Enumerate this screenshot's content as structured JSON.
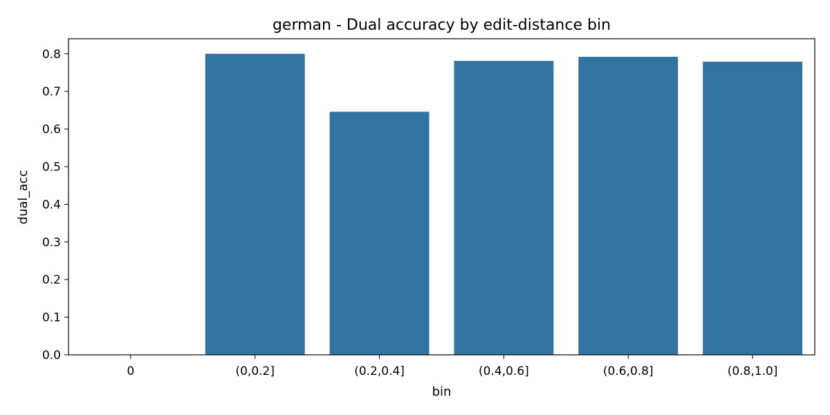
{
  "chart_data": {
    "type": "bar",
    "title": "german - Dual accuracy by edit-distance bin",
    "xlabel": "bin",
    "ylabel": "dual_acc",
    "categories": [
      "0",
      "(0,0.2]",
      "(0.2,0.4]",
      "(0.4,0.6]",
      "(0.6,0.8]",
      "(0.8,1.0]"
    ],
    "values": [
      0.0,
      0.8,
      0.646,
      0.781,
      0.792,
      0.779
    ],
    "ylim": [
      0,
      0.84
    ],
    "yticks": [
      "0.0",
      "0.1",
      "0.2",
      "0.3",
      "0.4",
      "0.5",
      "0.6",
      "0.7",
      "0.8"
    ],
    "grid": false,
    "legend": "none",
    "bar_color": "#3274a1"
  }
}
